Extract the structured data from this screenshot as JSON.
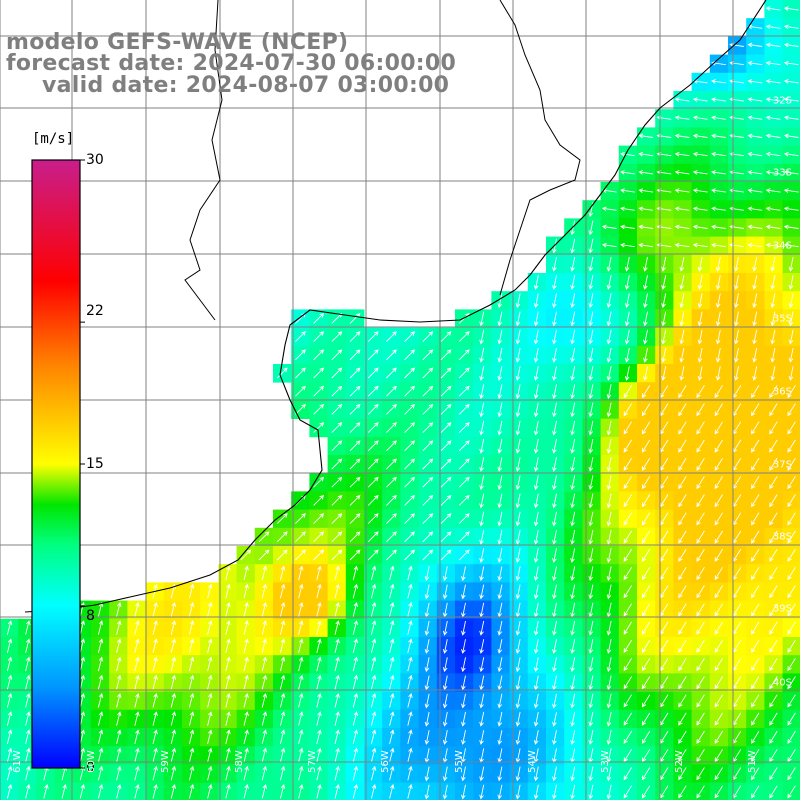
{
  "title": {
    "line1": "modelo GEFS-WAVE (NCEP)",
    "line2": "forecast date: 2024-07-30 06:00:00",
    "line3": "valid date: 2024-08-07 03:00:00"
  },
  "colorbar": {
    "unit": "[m/s]",
    "ticks": [
      "30",
      "22",
      "15",
      "8",
      "0"
    ],
    "tick_values": [
      30,
      22,
      15,
      8,
      0
    ],
    "min": 0,
    "max": 30,
    "stops": [
      {
        "v": 0,
        "color": "#0000ff"
      },
      {
        "v": 4,
        "color": "#0096ff"
      },
      {
        "v": 8,
        "color": "#00ffff"
      },
      {
        "v": 11,
        "color": "#00ff80"
      },
      {
        "v": 13,
        "color": "#00e600"
      },
      {
        "v": 15,
        "color": "#ffff00"
      },
      {
        "v": 20,
        "color": "#ff8000"
      },
      {
        "v": 24,
        "color": "#ff0000"
      },
      {
        "v": 30,
        "color": "#c81e8c"
      }
    ]
  },
  "lat_labels": [
    "32S",
    "33S",
    "34S",
    "35S",
    "36S",
    "37S",
    "38S",
    "39S",
    "40S"
  ],
  "lon_labels": [
    "61W",
    "60W",
    "59W",
    "58W",
    "57W",
    "56W",
    "55W",
    "54W",
    "53W",
    "52W",
    "51W"
  ],
  "colors": {
    "coastline": "#000000",
    "grid": "#808080",
    "arrows": "#ffffff",
    "title": "#7f7f7f"
  }
}
